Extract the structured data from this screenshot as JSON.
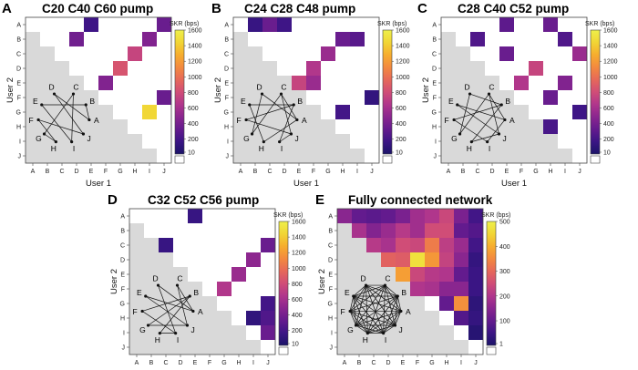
{
  "x_axis_label": "User 1",
  "y_axis_label": "User 2",
  "users": [
    "A",
    "B",
    "C",
    "D",
    "E",
    "F",
    "G",
    "H",
    "I",
    "J"
  ],
  "colorbar_label": "SKR (bps)",
  "colormap": [
    "#1b1468",
    "#3b1585",
    "#641b8e",
    "#8a268f",
    "#b0368c",
    "#d04d77",
    "#e6685a",
    "#f3893f",
    "#f6ad2e",
    "#f1d535",
    "#eef04a"
  ],
  "masked_color": "#d9d9d9",
  "empty_color": "#ffffff",
  "chart_data": [
    {
      "type": "heatmap",
      "panel": "A",
      "title": "C20 C40 C60 pump",
      "colorbar_ticks": [
        1600,
        1400,
        1200,
        1000,
        800,
        600,
        400,
        200,
        10
      ],
      "colorbar_range": [
        10,
        1600
      ],
      "network_edges": [
        [
          "A",
          "B"
        ],
        [
          "C",
          "G"
        ],
        [
          "D",
          "J"
        ],
        [
          "E",
          "I"
        ],
        [
          "F",
          "H"
        ],
        [
          "A",
          "D"
        ],
        [
          "B",
          "E"
        ],
        [
          "C",
          "I"
        ],
        [
          "F",
          "J"
        ],
        [
          "G",
          "H"
        ]
      ],
      "cells": [
        {
          "row": "A",
          "col": "E",
          "value": 180
        },
        {
          "row": "A",
          "col": "J",
          "value": 350
        },
        {
          "row": "B",
          "col": "D",
          "value": 380
        },
        {
          "row": "B",
          "col": "I",
          "value": 450
        },
        {
          "row": "C",
          "col": "H",
          "value": 750
        },
        {
          "row": "D",
          "col": "G",
          "value": 850
        },
        {
          "row": "E",
          "col": "F",
          "value": 450
        },
        {
          "row": "F",
          "col": "J",
          "value": 350
        },
        {
          "row": "G",
          "col": "I",
          "value": 1450
        }
      ]
    },
    {
      "type": "heatmap",
      "panel": "B",
      "title": "C24 C28 C48 pump",
      "colorbar_ticks": [
        1600,
        1400,
        1200,
        1000,
        800,
        600,
        400,
        200,
        10
      ],
      "colorbar_range": [
        10,
        1600
      ],
      "network_edges": [
        [
          "A",
          "C"
        ],
        [
          "A",
          "D"
        ],
        [
          "A",
          "H"
        ],
        [
          "B",
          "E"
        ],
        [
          "B",
          "F"
        ],
        [
          "B",
          "I"
        ],
        [
          "C",
          "G"
        ],
        [
          "C",
          "J"
        ],
        [
          "D",
          "G"
        ],
        [
          "E",
          "H"
        ],
        [
          "F",
          "J"
        ],
        [
          "I",
          "J"
        ]
      ],
      "cells": [
        {
          "row": "A",
          "col": "B",
          "value": 150
        },
        {
          "row": "A",
          "col": "C",
          "value": 350
        },
        {
          "row": "A",
          "col": "D",
          "value": 180
        },
        {
          "row": "B",
          "col": "H",
          "value": 350
        },
        {
          "row": "B",
          "col": "I",
          "value": 280
        },
        {
          "row": "C",
          "col": "G",
          "value": 550
        },
        {
          "row": "D",
          "col": "F",
          "value": 650
        },
        {
          "row": "E",
          "col": "E",
          "value": 750
        },
        {
          "row": "E",
          "col": "F",
          "value": 550
        },
        {
          "row": "F",
          "col": "J",
          "value": 130
        },
        {
          "row": "G",
          "col": "H",
          "value": 200
        }
      ]
    },
    {
      "type": "heatmap",
      "panel": "C",
      "title": "C28 C40 C52 pump",
      "colorbar_ticks": [
        1600,
        1400,
        1200,
        1000,
        800,
        600,
        400,
        200,
        10
      ],
      "colorbar_range": [
        10,
        1600
      ],
      "network_edges": [
        [
          "A",
          "C"
        ],
        [
          "A",
          "E"
        ],
        [
          "A",
          "I"
        ],
        [
          "B",
          "D"
        ],
        [
          "B",
          "F"
        ],
        [
          "B",
          "H"
        ],
        [
          "C",
          "G"
        ],
        [
          "C",
          "J"
        ],
        [
          "D",
          "G"
        ],
        [
          "E",
          "J"
        ],
        [
          "F",
          "I"
        ],
        [
          "H",
          "J"
        ]
      ],
      "cells": [
        {
          "row": "A",
          "col": "E",
          "value": 300
        },
        {
          "row": "A",
          "col": "H",
          "value": 350
        },
        {
          "row": "B",
          "col": "C",
          "value": 250
        },
        {
          "row": "B",
          "col": "I",
          "value": 250
        },
        {
          "row": "C",
          "col": "E",
          "value": 350
        },
        {
          "row": "C",
          "col": "J",
          "value": 550
        },
        {
          "row": "D",
          "col": "G",
          "value": 750
        },
        {
          "row": "E",
          "col": "F",
          "value": 650
        },
        {
          "row": "E",
          "col": "I",
          "value": 450
        },
        {
          "row": "F",
          "col": "H",
          "value": 350
        },
        {
          "row": "G",
          "col": "J",
          "value": 180
        },
        {
          "row": "H",
          "col": "H",
          "value": 220
        }
      ]
    },
    {
      "type": "heatmap",
      "panel": "D",
      "title": "C32 C52 C56 pump",
      "colorbar_ticks": [
        1600,
        1400,
        1200,
        1000,
        800,
        600,
        400,
        200,
        10
      ],
      "colorbar_range": [
        10,
        1600
      ],
      "network_edges": [
        [
          "A",
          "C"
        ],
        [
          "A",
          "D"
        ],
        [
          "A",
          "E"
        ],
        [
          "B",
          "F"
        ],
        [
          "B",
          "G"
        ],
        [
          "B",
          "H"
        ],
        [
          "C",
          "J"
        ],
        [
          "D",
          "I"
        ],
        [
          "E",
          "J"
        ],
        [
          "F",
          "I"
        ],
        [
          "G",
          "J"
        ],
        [
          "H",
          "I"
        ]
      ],
      "cells": [
        {
          "row": "A",
          "col": "E",
          "value": 150
        },
        {
          "row": "C",
          "col": "C",
          "value": 150
        },
        {
          "row": "C",
          "col": "J",
          "value": 350
        },
        {
          "row": "D",
          "col": "I",
          "value": 500
        },
        {
          "row": "E",
          "col": "H",
          "value": 550
        },
        {
          "row": "F",
          "col": "G",
          "value": 650
        },
        {
          "row": "G",
          "col": "J",
          "value": 200
        },
        {
          "row": "H",
          "col": "I",
          "value": 120
        },
        {
          "row": "H",
          "col": "J",
          "value": 250
        },
        {
          "row": "I",
          "col": "J",
          "value": 350
        }
      ]
    },
    {
      "type": "heatmap",
      "panel": "E",
      "title": "Fully connected network",
      "colorbar_ticks": [
        500,
        400,
        300,
        200,
        100,
        1
      ],
      "colorbar_range": [
        1,
        500
      ],
      "network_edges": "all",
      "cells": [
        {
          "row": "A",
          "col": "A",
          "value": 150
        },
        {
          "row": "A",
          "col": "B",
          "value": 100
        },
        {
          "row": "A",
          "col": "C",
          "value": 90
        },
        {
          "row": "A",
          "col": "D",
          "value": 100
        },
        {
          "row": "A",
          "col": "E",
          "value": 130
        },
        {
          "row": "A",
          "col": "F",
          "value": 180
        },
        {
          "row": "A",
          "col": "G",
          "value": 200
        },
        {
          "row": "A",
          "col": "H",
          "value": 240
        },
        {
          "row": "A",
          "col": "I",
          "value": 130
        },
        {
          "row": "A",
          "col": "J",
          "value": 60
        },
        {
          "row": "B",
          "col": "B",
          "value": 190
        },
        {
          "row": "B",
          "col": "C",
          "value": 140
        },
        {
          "row": "B",
          "col": "D",
          "value": 170
        },
        {
          "row": "B",
          "col": "E",
          "value": 210
        },
        {
          "row": "B",
          "col": "F",
          "value": 180
        },
        {
          "row": "B",
          "col": "G",
          "value": 250
        },
        {
          "row": "B",
          "col": "H",
          "value": 250
        },
        {
          "row": "B",
          "col": "I",
          "value": 100
        },
        {
          "row": "B",
          "col": "J",
          "value": 80
        },
        {
          "row": "C",
          "col": "C",
          "value": 210
        },
        {
          "row": "C",
          "col": "D",
          "value": 190
        },
        {
          "row": "C",
          "col": "E",
          "value": 250
        },
        {
          "row": "C",
          "col": "F",
          "value": 240
        },
        {
          "row": "C",
          "col": "G",
          "value": 330
        },
        {
          "row": "C",
          "col": "H",
          "value": 220
        },
        {
          "row": "C",
          "col": "I",
          "value": 170
        },
        {
          "row": "C",
          "col": "J",
          "value": 60
        },
        {
          "row": "D",
          "col": "D",
          "value": 290
        },
        {
          "row": "D",
          "col": "E",
          "value": 280
        },
        {
          "row": "D",
          "col": "F",
          "value": 470
        },
        {
          "row": "D",
          "col": "G",
          "value": 370
        },
        {
          "row": "D",
          "col": "H",
          "value": 230
        },
        {
          "row": "D",
          "col": "I",
          "value": 150
        },
        {
          "row": "D",
          "col": "J",
          "value": 40
        },
        {
          "row": "E",
          "col": "E",
          "value": 380
        },
        {
          "row": "E",
          "col": "F",
          "value": 240
        },
        {
          "row": "E",
          "col": "G",
          "value": 210
        },
        {
          "row": "E",
          "col": "H",
          "value": 200
        },
        {
          "row": "E",
          "col": "I",
          "value": 100
        },
        {
          "row": "E",
          "col": "J",
          "value": 50
        },
        {
          "row": "F",
          "col": "F",
          "value": 200
        },
        {
          "row": "F",
          "col": "G",
          "value": 190
        },
        {
          "row": "F",
          "col": "H",
          "value": 150
        },
        {
          "row": "F",
          "col": "I",
          "value": 150
        },
        {
          "row": "F",
          "col": "J",
          "value": 50
        },
        {
          "row": "G",
          "col": "H",
          "value": 100
        },
        {
          "row": "G",
          "col": "I",
          "value": 360
        },
        {
          "row": "G",
          "col": "J",
          "value": 30
        },
        {
          "row": "H",
          "col": "I",
          "value": 80
        },
        {
          "row": "H",
          "col": "J",
          "value": 40
        },
        {
          "row": "I",
          "col": "J",
          "value": 20
        }
      ]
    }
  ]
}
